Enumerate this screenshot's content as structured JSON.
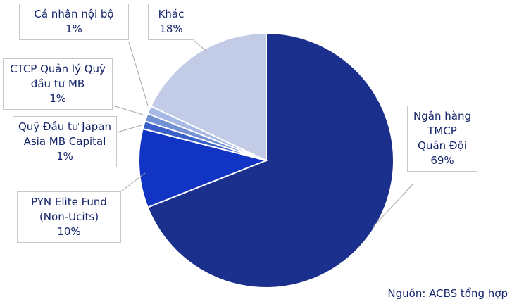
{
  "chart_data": {
    "type": "pie",
    "categories": [
      "Ngân hàng TMCP Quân Đội",
      "PYN Elite Fund (Non-Ucits)",
      "Quỹ Đầu tư Japan Asia MB Capital",
      "CTCP Quản lý Quỹ đầu tư MB",
      "Cá nhân nội bộ",
      "Khác"
    ],
    "values": [
      69,
      10,
      1,
      1,
      1,
      18
    ],
    "value_labels": [
      "69%",
      "10%",
      "1%",
      "1%",
      "1%",
      "18%"
    ],
    "colors": [
      "#1b2f8c",
      "#1234c4",
      "#3a5fc8",
      "#7290d4",
      "#a8b8e4",
      "#c3cce6"
    ],
    "note": "Nguồn: ACBS tổng hợp"
  }
}
